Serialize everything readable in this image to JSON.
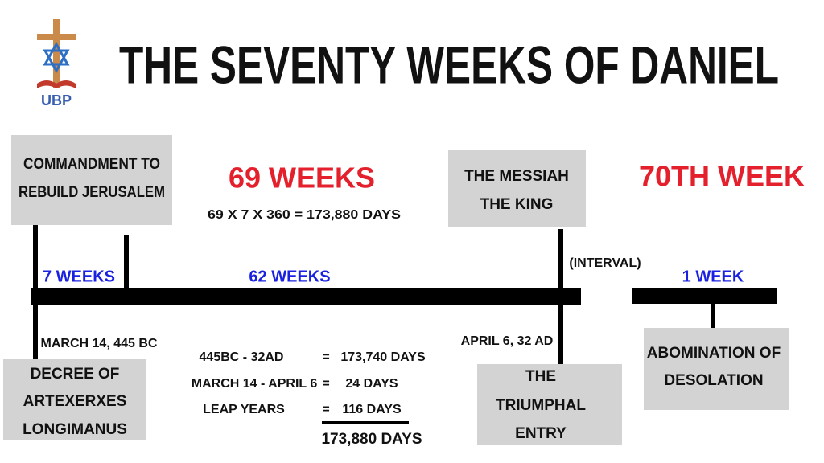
{
  "logo": {
    "text": "UBP"
  },
  "title": "THE SEVENTY WEEKS OF DANIEL",
  "commandment": {
    "lines": [
      "COMMANDMENT TO",
      "REBUILD JERUSALEM"
    ]
  },
  "sixty_nine": {
    "heading": "69 WEEKS",
    "formula": "69 X 7 X 360 = 173,880 DAYS"
  },
  "messiah": {
    "lines": [
      "THE MESSIAH",
      "THE KING"
    ]
  },
  "seventieth": {
    "heading": "70TH WEEK"
  },
  "timeline": {
    "segment_1": "7 WEEKS",
    "segment_2": "62 WEEKS",
    "interval": "(INTERVAL)",
    "segment_3": "1 WEEK"
  },
  "dates": {
    "start": "MARCH 14, 445 BC",
    "entry": "APRIL 6, 32 AD"
  },
  "decree": {
    "lines": [
      "DECREE OF",
      "ARTEXERXES",
      "LONGIMANUS"
    ]
  },
  "calculation": {
    "rows": [
      [
        "445BC - 32AD",
        "=",
        "173,740 DAYS"
      ],
      [
        "MARCH 14 - APRIL 6",
        "=",
        "24 DAYS"
      ],
      [
        "LEAP YEARS",
        "=",
        "116 DAYS"
      ]
    ],
    "total": "173,880 DAYS"
  },
  "triumphal": {
    "lines": [
      "THE",
      "TRIUMPHAL",
      "ENTRY"
    ]
  },
  "abomination": {
    "lines": [
      "ABOMINATION OF",
      "DESOLATION"
    ]
  }
}
